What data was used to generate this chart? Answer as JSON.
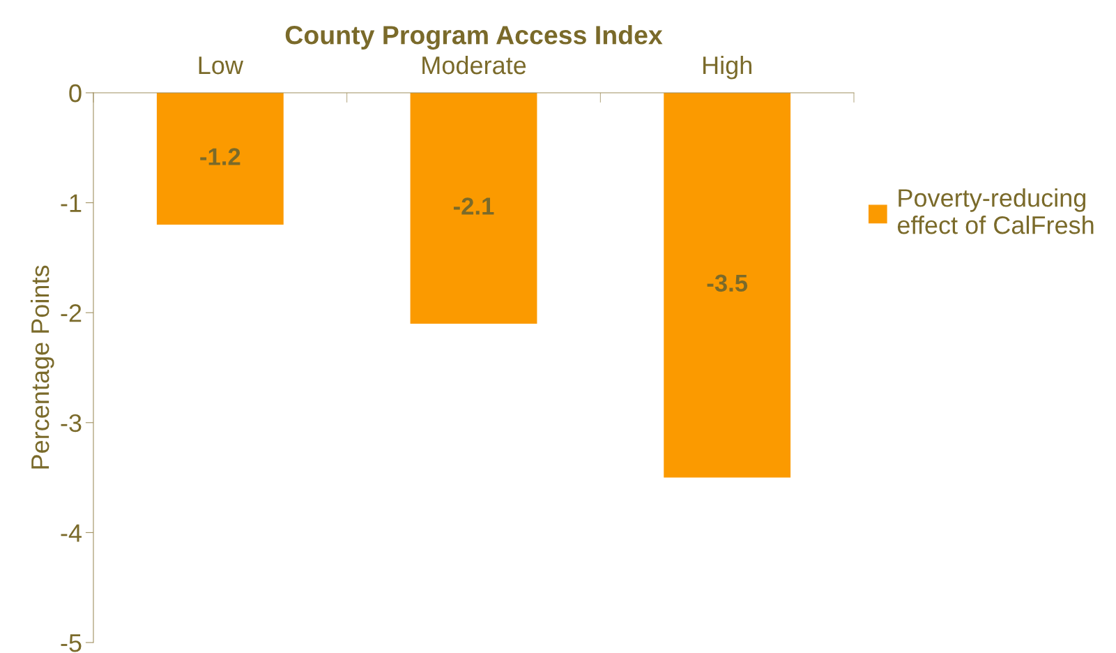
{
  "chart_data": {
    "type": "bar",
    "xlabel": "County Program Access Index",
    "ylabel": "Percentage Points",
    "categories": [
      "Low",
      "Moderate",
      "High"
    ],
    "series": [
      {
        "name": "Poverty-reducing\neffect of CalFresh",
        "color": "#fb9a00",
        "values": [
          -1.2,
          -2.1,
          -3.5
        ]
      }
    ],
    "ylim": [
      -5,
      0
    ],
    "yticks": [
      0,
      -1,
      -2,
      -3,
      -4,
      -5
    ],
    "grid": false,
    "legend": "right",
    "data_labels": true
  }
}
